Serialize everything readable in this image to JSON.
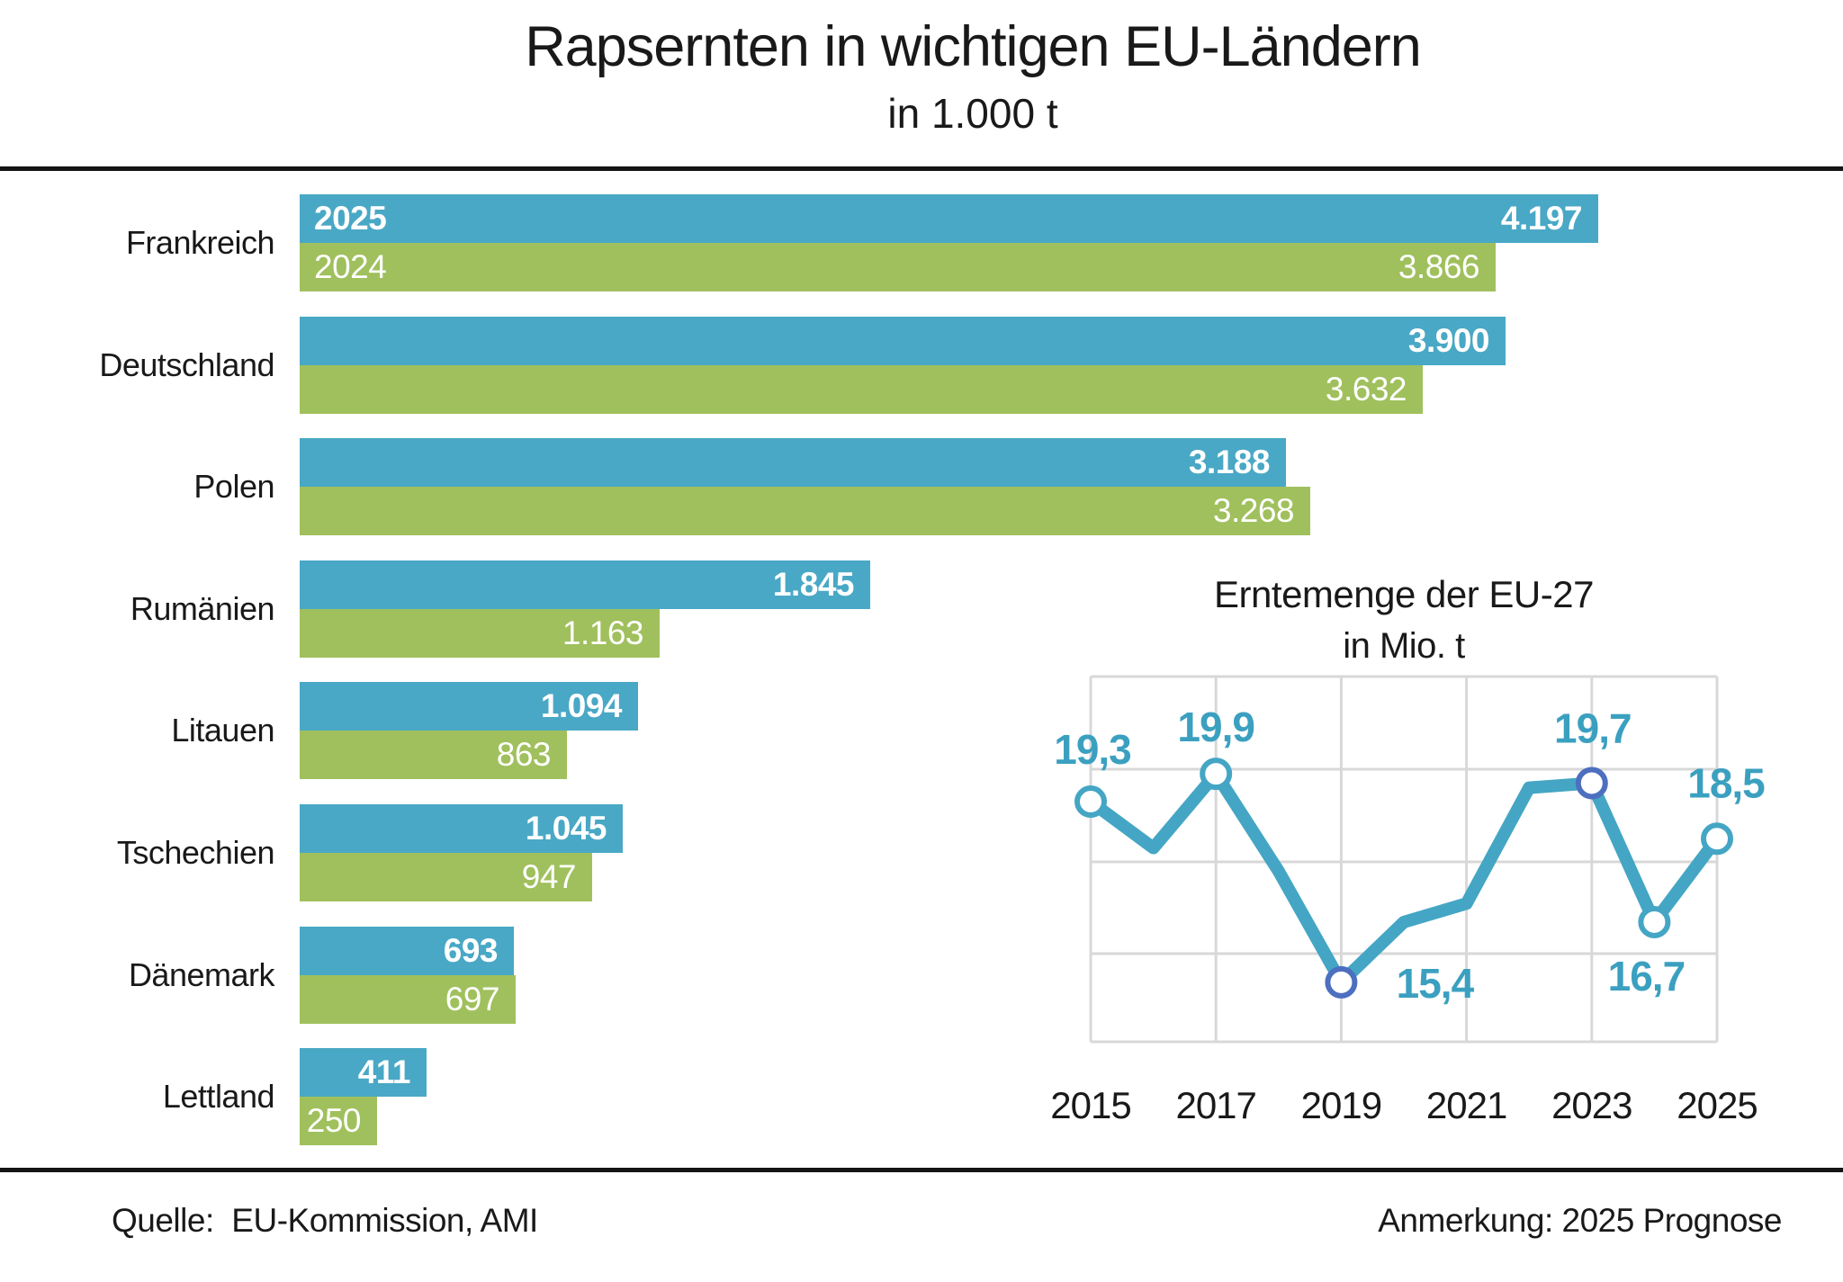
{
  "footer": {
    "source": "Quelle:  EU-Kommission, AMI",
    "note": "Anmerkung: 2025 Prognose"
  },
  "colors": {
    "bar_2025": "#49a8c5",
    "bar_2024": "#a0c05d",
    "line": "#44a6c4",
    "point_label": "#3ba0c0",
    "marker_default_border": "#44a6c4",
    "marker_special_border": "#4d6fc0",
    "grid": "#d8d8d8",
    "text": "#191919",
    "value_text": "#ffffff"
  },
  "chart_data": [
    {
      "type": "bar",
      "title": "Rapsernten in wichtigen EU-Ländern",
      "subtitle": "in 1.000 t",
      "orientation": "horizontal",
      "categories": [
        "Frankreich",
        "Deutschland",
        "Polen",
        "Rumänien",
        "Litauen",
        "Tschechien",
        "Dänemark",
        "Lettland"
      ],
      "series": [
        {
          "name": "2025",
          "values": [
            4197,
            3900,
            3188,
            1845,
            1094,
            1045,
            693,
            411
          ],
          "labels": [
            "4.197",
            "3.900",
            "3.188",
            "1.845",
            "1.094",
            "1.045",
            "693",
            "411"
          ],
          "color": "#49a8c5",
          "bold_labels": true
        },
        {
          "name": "2024",
          "values": [
            3866,
            3632,
            3268,
            1163,
            863,
            947,
            697,
            250
          ],
          "labels": [
            "3.866",
            "3.632",
            "3.268",
            "1.163",
            "863",
            "947",
            "697",
            "250"
          ],
          "color": "#a0c05d",
          "bold_labels": false
        }
      ],
      "xlim": [
        0,
        4500
      ],
      "grid": false,
      "legend": "year labels shown inside first row bars"
    },
    {
      "type": "line",
      "title": "Erntemenge der EU-27",
      "subtitle": "in Mio. t",
      "x": [
        2015,
        2016,
        2017,
        2018,
        2019,
        2020,
        2021,
        2022,
        2023,
        2024,
        2025
      ],
      "values": [
        19.3,
        18.3,
        19.9,
        17.8,
        15.4,
        16.7,
        17.1,
        19.6,
        19.7,
        16.7,
        18.5
      ],
      "point_labels": {
        "2015": "19,3",
        "2017": "19,9",
        "2019": "15,4",
        "2023": "19,7",
        "2024": "16,7",
        "2025": "18,5"
      },
      "markers": [
        2015,
        2017,
        2019,
        2023,
        2024,
        2025
      ],
      "special_markers": [
        2019,
        2023
      ],
      "x_ticks": [
        2015,
        2017,
        2019,
        2021,
        2023,
        2025
      ],
      "xlim": [
        2015,
        2025
      ],
      "ylim": [
        14,
        22
      ],
      "grid": true,
      "legend_position": "none"
    }
  ]
}
